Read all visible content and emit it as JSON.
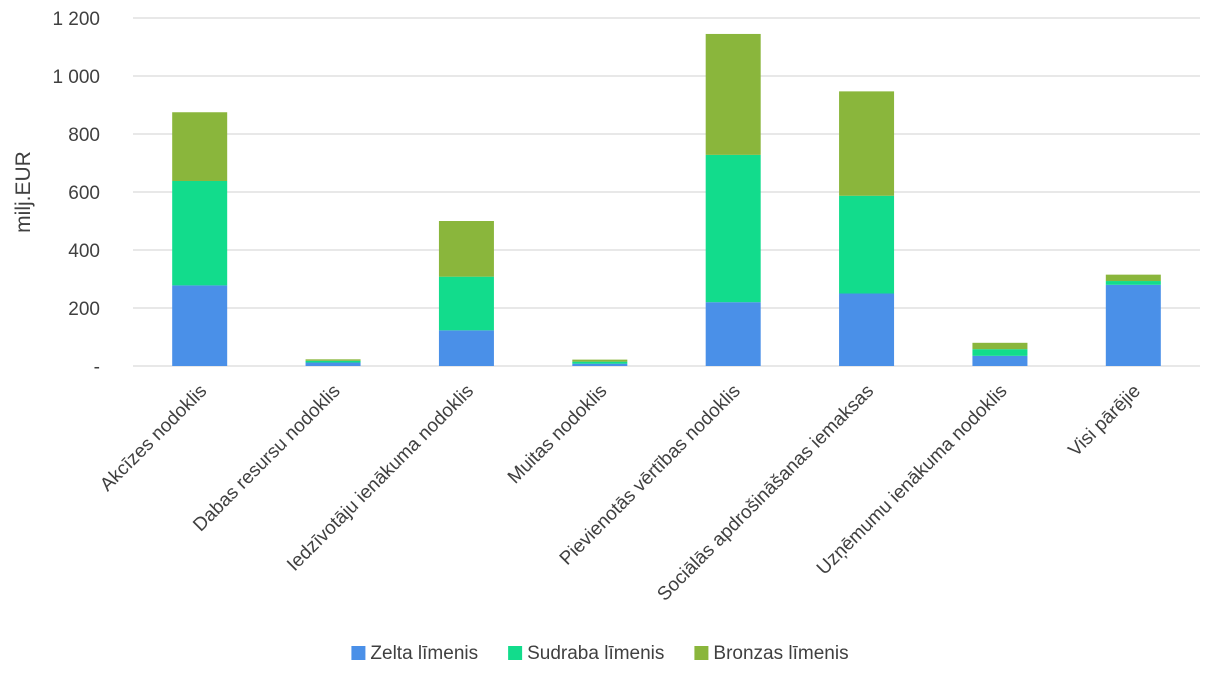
{
  "chart_data": {
    "type": "bar",
    "stacked": true,
    "title": "",
    "xlabel": "",
    "ylabel": "milj.EUR",
    "ylim": [
      0,
      1200
    ],
    "yticks": [
      0,
      200,
      400,
      600,
      800,
      1000,
      1200
    ],
    "ytick_labels": [
      "-",
      "200",
      "400",
      "600",
      "800",
      "1 000",
      "1 200"
    ],
    "grid": true,
    "legend_position": "bottom",
    "categories": [
      "Akcīzes nodoklis",
      "Dabas resursu nodoklis",
      "Iedzīvotāju ienākuma nodoklis",
      "Muitas nodoklis",
      "Pievienotās vērtības nodoklis",
      "Sociālās apdrošināšanas iemaksas",
      "Uzņēmumu ienākuma nodoklis",
      "Visi pārējie"
    ],
    "series": [
      {
        "name": "Zelta līmenis",
        "color": "#4a90e8",
        "values": [
          278,
          12,
          123,
          8,
          220,
          250,
          35,
          280
        ]
      },
      {
        "name": "Sudraba līmenis",
        "color": "#12dc8c",
        "values": [
          360,
          6,
          185,
          7,
          508,
          337,
          23,
          13
        ]
      },
      {
        "name": "Bronzas līmenis",
        "color": "#8ab63c",
        "values": [
          237,
          5,
          192,
          7,
          417,
          360,
          22,
          22
        ]
      }
    ]
  }
}
